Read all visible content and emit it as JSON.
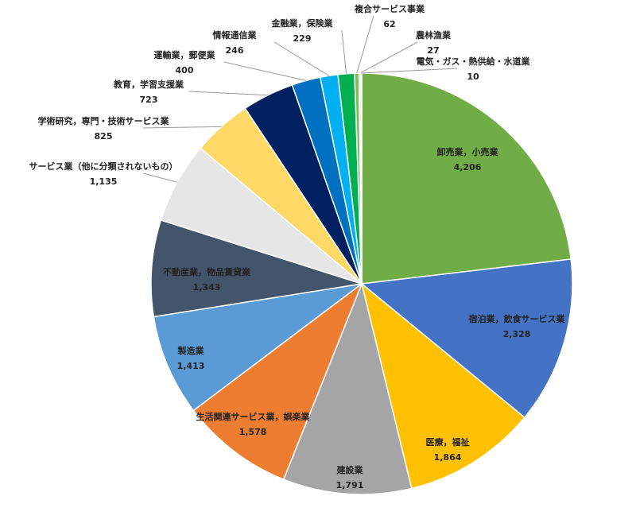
{
  "chart_data": {
    "type": "pie",
    "categories": [
      "卸売業，小売業",
      "宿泊業，飲食サービス業",
      "医療，福祉",
      "建設業",
      "生活関連サービス業，娯楽業",
      "製造業",
      "不動産業，物品賃貸業",
      "サービス業（他に分類されないもの）",
      "学術研究，専門・技術サービス業",
      "教育，学習支援業",
      "運輸業，郵便業",
      "情報通信業",
      "金融業，保険業",
      "複合サービス事業",
      "農林漁業",
      "電気・ガス・熱供給・水道業"
    ],
    "values": [
      4206,
      2328,
      1864,
      1791,
      1578,
      1413,
      1343,
      1135,
      825,
      723,
      400,
      246,
      229,
      62,
      27,
      10
    ],
    "value_labels": [
      "4,206",
      "2,328",
      "1,864",
      "1,791",
      "1,578",
      "1,413",
      "1,343",
      "1,135",
      "825",
      "723",
      "400",
      "246",
      "229",
      "62",
      "27",
      "10"
    ],
    "colors": [
      "#70ad47",
      "#4472c4",
      "#ffc000",
      "#a5a5a5",
      "#ed7d31",
      "#5b9bd5",
      "#44546a",
      "#e7e6e6",
      "#ffd966",
      "#002060",
      "#0070c0",
      "#00b0f0",
      "#00b050",
      "#7fbf5a",
      "#c5e0b4",
      "#d9d9d9"
    ]
  }
}
